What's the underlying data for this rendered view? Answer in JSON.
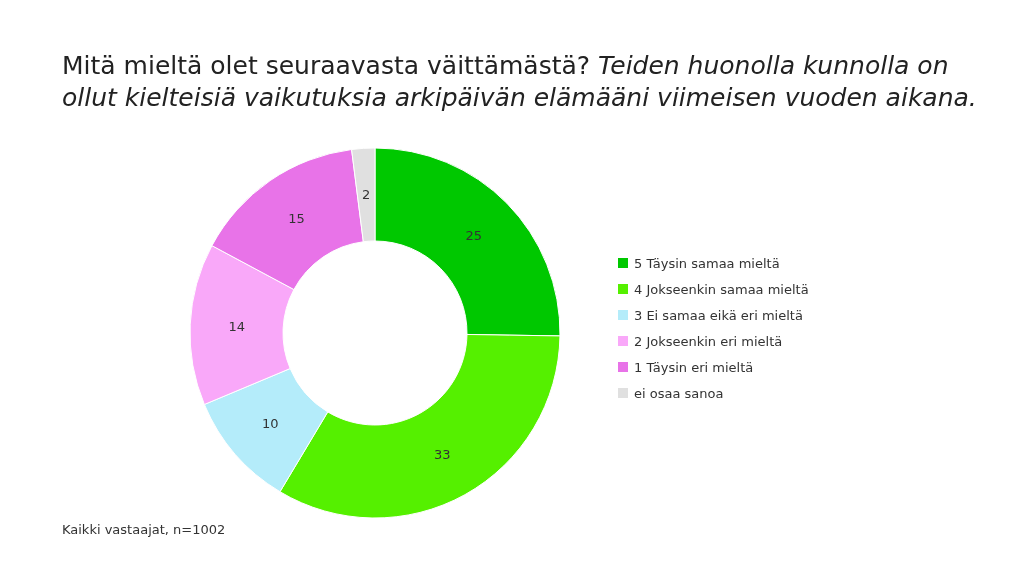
{
  "chart_data": {
    "type": "donut",
    "title": "Mitä mieltä olet seuraavasta väittämästä?",
    "subtitle": "Teiden huonolla kunnolla on ollut kielteisiä vaikutuksia arkipäivän elämääni viimeisen vuoden aikana.",
    "categories": [
      "5 Täysin samaa mieltä",
      "4 Jokseenkin samaa mieltä",
      "3 Ei samaa eikä eri mieltä",
      "2 Jokseenkin eri mieltä",
      "1 Täysin eri mieltä",
      "ei osaa sanoa"
    ],
    "values": [
      25,
      33,
      10,
      14,
      15,
      2
    ],
    "colors": [
      "#00c800",
      "#55f000",
      "#b4ecfa",
      "#f9a8f9",
      "#e873e8",
      "#e0e0e0"
    ],
    "data_labels": true,
    "legend": "right",
    "annotations": [
      "Kaikki vastaajat, n=1002"
    ]
  }
}
